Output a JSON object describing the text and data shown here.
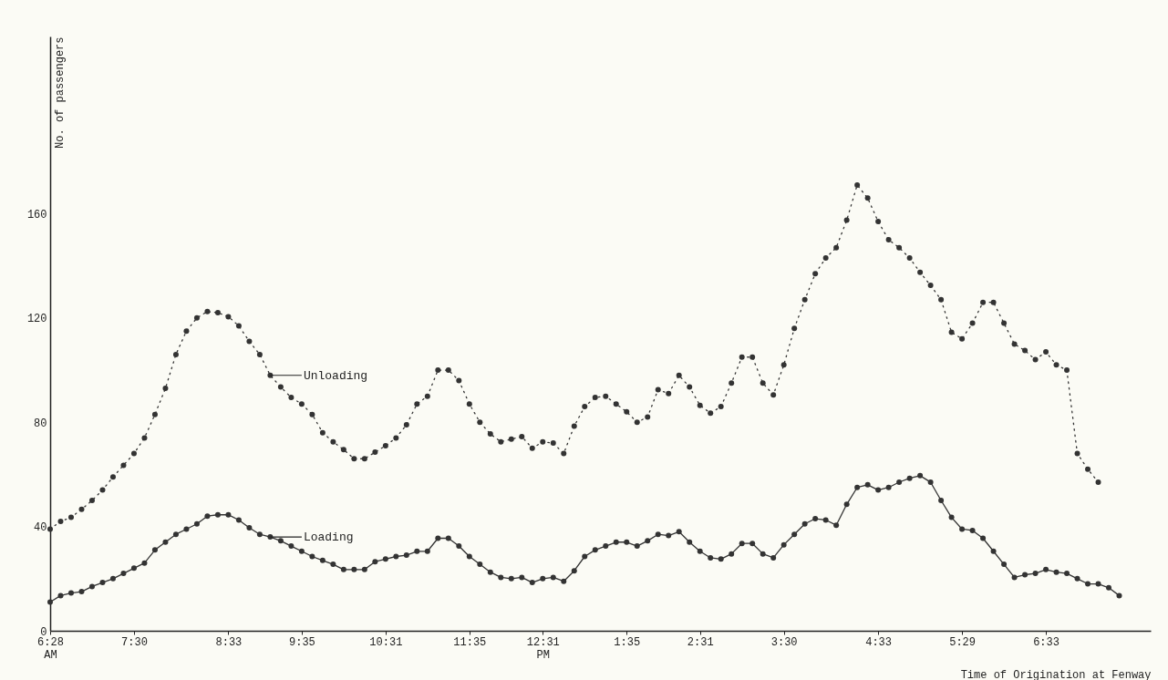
{
  "chart_data": {
    "type": "line",
    "xlabel": "Time of Origination at Fenway",
    "ylabel": "No. of passengers",
    "categories": [
      "6:28\nAM",
      null,
      null,
      null,
      null,
      null,
      null,
      null,
      "7:30",
      null,
      null,
      null,
      null,
      null,
      null,
      null,
      null,
      "8:33",
      null,
      null,
      null,
      null,
      null,
      null,
      "9:35",
      null,
      null,
      null,
      null,
      null,
      null,
      null,
      "10:31",
      null,
      null,
      null,
      null,
      null,
      null,
      null,
      "11:35",
      null,
      null,
      null,
      null,
      null,
      null,
      "12:31\nPM",
      null,
      null,
      null,
      null,
      null,
      null,
      null,
      "1:35",
      null,
      null,
      null,
      null,
      null,
      null,
      "2:31",
      null,
      null,
      null,
      null,
      null,
      null,
      null,
      "3:30",
      null,
      null,
      null,
      null,
      null,
      null,
      null,
      null,
      "4:33",
      null,
      null,
      null,
      null,
      null,
      null,
      null,
      "5:29",
      null,
      null,
      null,
      null,
      null,
      null,
      null,
      "6:33",
      null,
      null,
      null,
      null,
      null,
      null,
      null
    ],
    "ylim": [
      0,
      228
    ],
    "yticks": [
      0,
      40,
      80,
      120,
      160
    ],
    "grid": false,
    "marker": "circle",
    "series": [
      {
        "name": "Unloading",
        "color": "#333333",
        "line_style": "dotted",
        "values": [
          39,
          42,
          43.5,
          46.6,
          50,
          54,
          59,
          63.5,
          68,
          74,
          83,
          93,
          106,
          115,
          120,
          122.5,
          122,
          120.5,
          117,
          111,
          106,
          98,
          93.5,
          89.5,
          87,
          83,
          76,
          72.5,
          69.5,
          66,
          66,
          68.5,
          71,
          74,
          79,
          87,
          90,
          100,
          100,
          96,
          87,
          80,
          75.5,
          72.5,
          73.5,
          74.5,
          70,
          72.5,
          72,
          68,
          78.5,
          86,
          89.5,
          90,
          87,
          84,
          80,
          82,
          92.5,
          91,
          98,
          93.5,
          86.5,
          83.5,
          86,
          95,
          105,
          105,
          95,
          90.5,
          102,
          116,
          127,
          137,
          143,
          147,
          157.5,
          171,
          166,
          157,
          150,
          147,
          143,
          137.5,
          132.5,
          127,
          114.5,
          112,
          118,
          126,
          126,
          118,
          110,
          107.5,
          104,
          107,
          102,
          100,
          68,
          62,
          57,
          null,
          null
        ]
      },
      {
        "name": "Loading",
        "color": "#333333",
        "line_style": "solid",
        "values": [
          11,
          13.5,
          14.5,
          15,
          17,
          18.5,
          20,
          22,
          24,
          26,
          31,
          34,
          37,
          39,
          41,
          44,
          44.5,
          44.5,
          42.5,
          39.5,
          37,
          36,
          34.5,
          32.5,
          30.5,
          28.5,
          27,
          25.5,
          23.5,
          23.5,
          23.5,
          26.5,
          27.5,
          28.5,
          29,
          30.5,
          30.5,
          35.5,
          35.5,
          32.5,
          28.5,
          25.5,
          22.5,
          20.5,
          20,
          20.5,
          18.5,
          20,
          20.5,
          19,
          23,
          28.5,
          31,
          32.5,
          34,
          34,
          32.5,
          34.5,
          37,
          36.5,
          38,
          34,
          30.5,
          28,
          27.5,
          29.5,
          33.5,
          33.5,
          29.5,
          28,
          33,
          37,
          41,
          43,
          42.5,
          40.5,
          48.5,
          55,
          56,
          54,
          55,
          57,
          58.5,
          59.5,
          57,
          50,
          43.5,
          39,
          38.5,
          35.5,
          30.5,
          25.5,
          20.5,
          21.5,
          22,
          23.5,
          22.5,
          22,
          20,
          18,
          18,
          16.5,
          13.5
        ]
      }
    ]
  }
}
